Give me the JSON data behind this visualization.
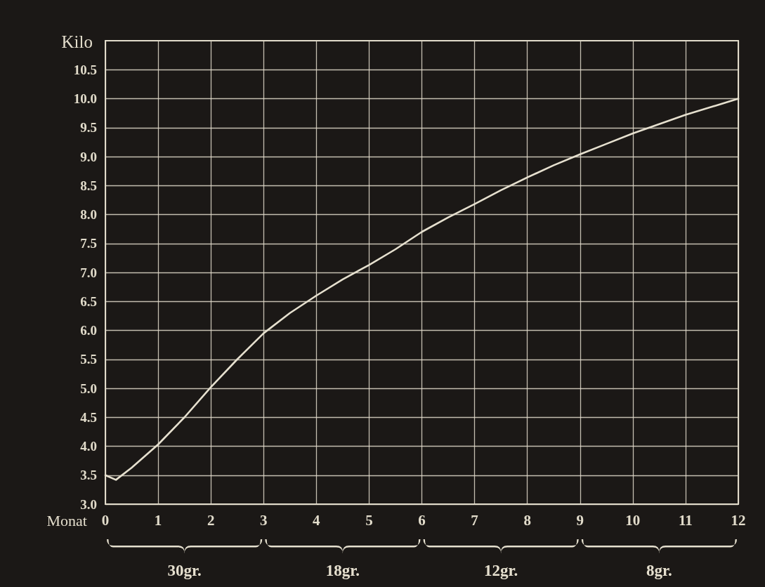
{
  "chart_data": {
    "type": "line",
    "xlabel": "Monat",
    "ylabel": "Kilo",
    "x": [
      0,
      0.2,
      0.5,
      1,
      1.5,
      2,
      2.5,
      3,
      3.5,
      4,
      4.5,
      5,
      5.5,
      6,
      6.5,
      7,
      7.5,
      8,
      8.5,
      9,
      9.5,
      10,
      10.5,
      11,
      11.5,
      12
    ],
    "series": [
      {
        "color": "#e6e0cf",
        "values": [
          3.5,
          3.42,
          3.63,
          4.03,
          4.5,
          5.02,
          5.5,
          5.95,
          6.3,
          6.6,
          6.88,
          7.13,
          7.4,
          7.7,
          7.95,
          8.18,
          8.42,
          8.64,
          8.85,
          9.04,
          9.22,
          9.4,
          9.56,
          9.72,
          9.86,
          10.0
        ]
      }
    ],
    "xlim": [
      0,
      12
    ],
    "xticks": [
      0,
      1,
      2,
      3,
      4,
      5,
      6,
      7,
      8,
      9,
      10,
      11,
      12
    ],
    "ylim": [
      3,
      11
    ],
    "yticks": [
      {
        "value": 3,
        "label": "3.0"
      },
      3.5,
      {
        "value": 4,
        "label": "4.0"
      },
      4.5,
      {
        "value": 5,
        "label": "5.0"
      },
      5.5,
      {
        "value": 6,
        "label": "6.0"
      },
      6.5,
      {
        "value": 7,
        "label": "7.0"
      },
      7.5,
      {
        "value": 8,
        "label": "8.0"
      },
      8.5,
      {
        "value": 9,
        "label": "9.0"
      },
      9.5,
      {
        "value": 10,
        "label": "10.0"
      },
      10.5
    ],
    "annotations": [
      "30gr.",
      "18gr.",
      "12gr.",
      "8gr."
    ],
    "grid": true,
    "marker": "none",
    "line_style": "solid"
  }
}
